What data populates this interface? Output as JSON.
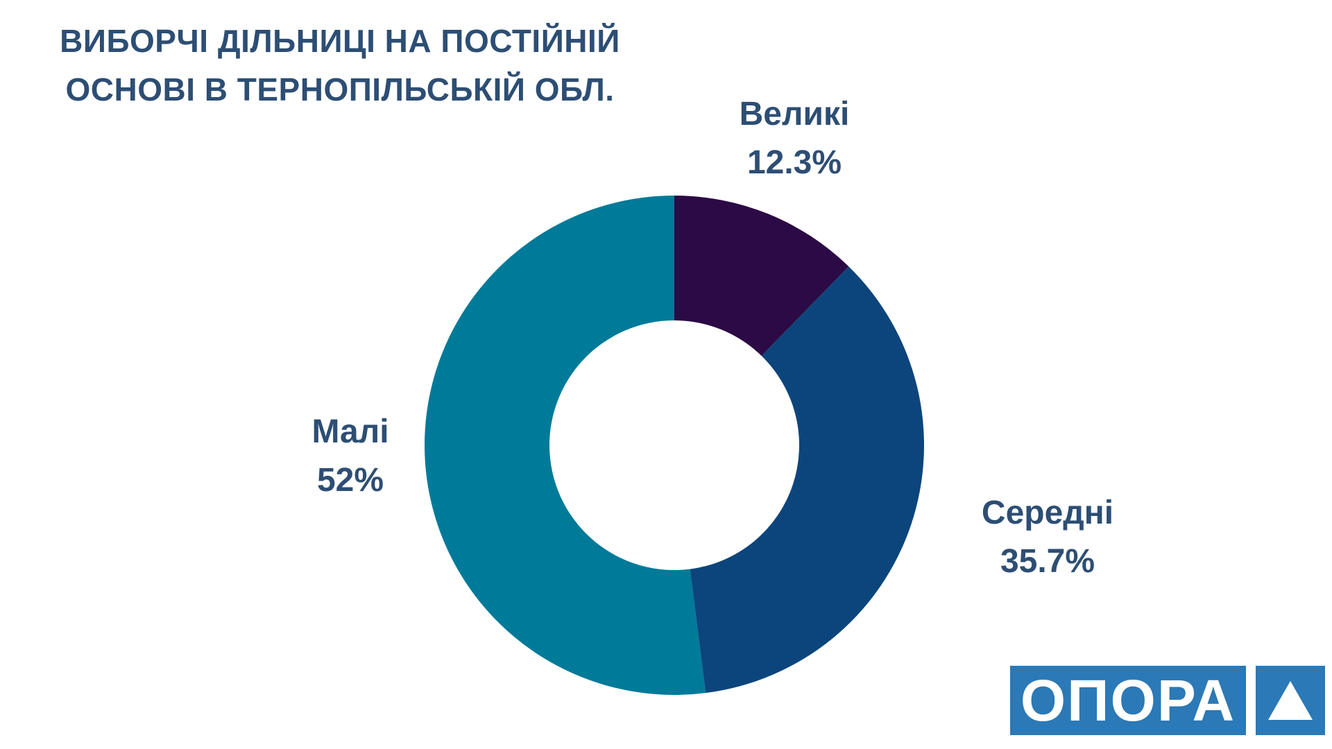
{
  "title": {
    "line1": "ВИБОРЧІ ДІЛЬНИЦІ НА ПОСТІЙНІЙ",
    "line2": "ОСНОВІ В ТЕРНОПІЛЬСЬКІЙ ОБЛ."
  },
  "chart_data": {
    "type": "pie",
    "variant": "donut",
    "title": "ВИБОРЧІ ДІЛЬНИЦІ НА ПОСТІЙНІЙ ОСНОВІ В ТЕРНОПІЛЬСЬКІЙ ОБЛ.",
    "slices": [
      {
        "label": "Великі",
        "value": 12.3,
        "display": "12.3%",
        "color": "#2b0a45"
      },
      {
        "label": "Середні",
        "value": 35.7,
        "display": "35.7%",
        "color": "#0c457c"
      },
      {
        "label": "Малі",
        "value": 52,
        "display": "52%",
        "color": "#007a99"
      }
    ],
    "start": "top",
    "direction": "clockwise",
    "label_color": "#2d4e74"
  },
  "logo": {
    "text": "ОПОРА",
    "icon": "triangle-icon",
    "color": "#2b79b6"
  }
}
